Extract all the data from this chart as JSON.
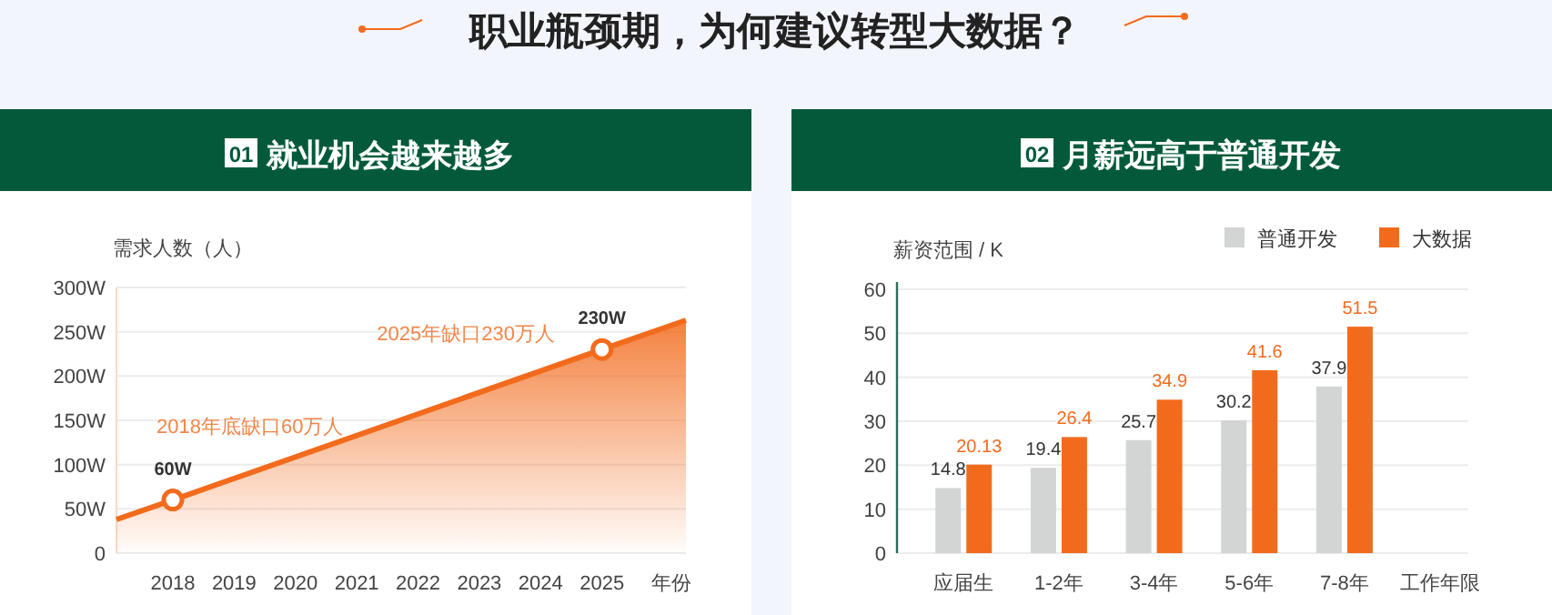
{
  "chart_data": [
    {
      "type": "other",
      "title": "职业瓶颈期，为何建议转型大数据？"
    },
    {
      "type": "area",
      "title": "就业机会越来越多",
      "annotations": [
        "01",
        "2018年底缺口60万人",
        "2025年缺口230万人"
      ],
      "ylabel": "需求人数（人）",
      "xlabel": "年份",
      "xlim": [
        2017.08,
        2026.37
      ],
      "xticks": [
        2018,
        2019,
        2020,
        2021,
        2022,
        2023,
        2024,
        2025
      ],
      "ylim": [
        0,
        300
      ],
      "yticks": [
        0,
        {
          "value": 50,
          "label": "50W"
        },
        {
          "value": 100,
          "label": "100W"
        },
        {
          "value": 150,
          "label": "150W"
        },
        {
          "value": 200,
          "label": "200W"
        },
        {
          "value": 250,
          "label": "250W"
        },
        {
          "value": 300,
          "label": "300W"
        }
      ],
      "grid": "y",
      "series": [
        {
          "type": "area",
          "color": "#f26b1d",
          "x": [
            2017.08,
            2018,
            2025,
            2026.37
          ],
          "values": [
            38,
            60,
            230,
            263
          ]
        },
        {
          "type": "scatter",
          "color": "#f26b1d",
          "marker": "circle",
          "x": [
            2018,
            2025
          ],
          "values": [
            60,
            230
          ],
          "value_labels": [
            "60W",
            "230W"
          ]
        }
      ]
    },
    {
      "type": "bar",
      "title": "月薪远高于普通开发",
      "annotations": [
        "02"
      ],
      "ylabel": "薪资范围 / K",
      "xlabel": "工作年限",
      "categories": [
        "应届生",
        "1-2年",
        "3-4年",
        "5-6年",
        "7-8年"
      ],
      "ylim": [
        0,
        60
      ],
      "yticks": [
        0,
        10,
        20,
        30,
        40,
        50,
        60
      ],
      "grid": "y",
      "legend": "top right",
      "data_labels": true,
      "series": [
        {
          "name": "普通开发",
          "color": "#d3d4d4",
          "values": [
            14.8,
            19.4,
            25.7,
            30.2,
            37.9
          ]
        },
        {
          "name": "大数据",
          "color": "#f26b1d",
          "values": [
            20.13,
            26.4,
            34.9,
            41.6,
            51.5
          ]
        }
      ]
    }
  ]
}
